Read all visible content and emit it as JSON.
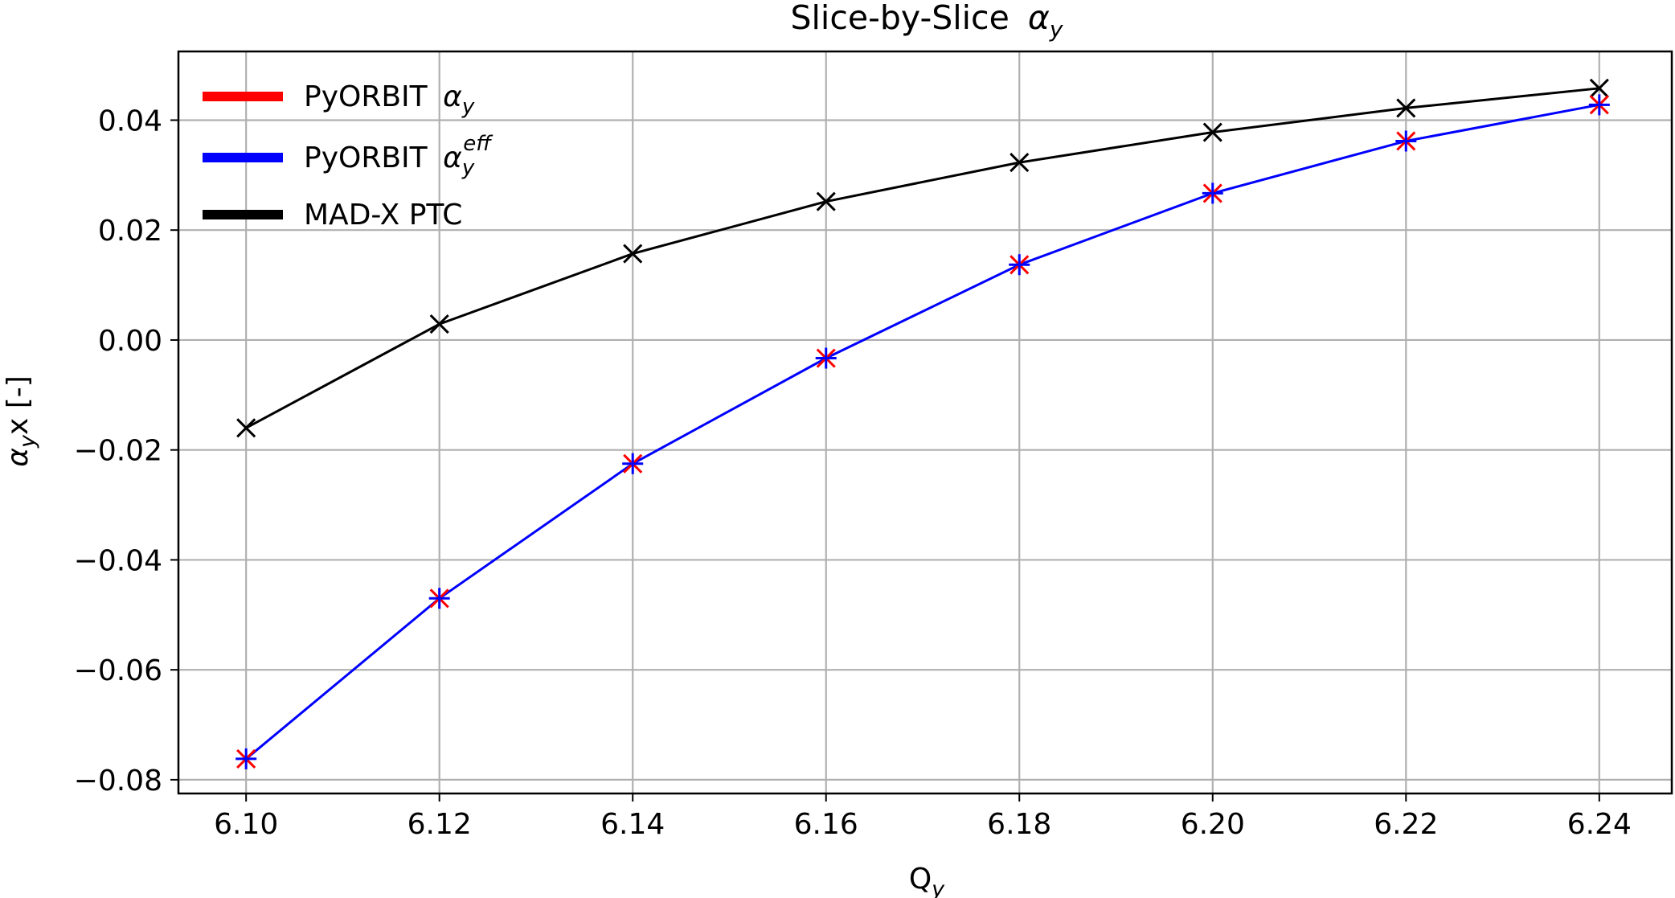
{
  "chart_data": {
    "type": "line",
    "title": "Slice-by-Slice",
    "title_symbol": "α",
    "title_subscript": "y",
    "xlabel": "Q",
    "xlabel_subscript": "y",
    "ylabel": "αyx [-]",
    "ylabel_parts": {
      "symbol": "α",
      "sub": "y",
      "rest": "x [-]"
    },
    "xlim": [
      6.093,
      6.2475
    ],
    "ylim": [
      -0.0825,
      0.0525
    ],
    "x_ticks": [
      6.1,
      6.12,
      6.14,
      6.16,
      6.18,
      6.2,
      6.22,
      6.24
    ],
    "x_tick_labels": [
      "6.10",
      "6.12",
      "6.14",
      "6.16",
      "6.18",
      "6.20",
      "6.22",
      "6.24"
    ],
    "y_ticks": [
      -0.08,
      -0.06,
      -0.04,
      -0.02,
      0.0,
      0.02,
      0.04
    ],
    "y_tick_labels": [
      "−0.08",
      "−0.06",
      "−0.04",
      "−0.02",
      "0.00",
      "0.02",
      "0.04"
    ],
    "grid": true,
    "legend_position": "top-left",
    "x": [
      6.1,
      6.12,
      6.14,
      6.16,
      6.18,
      6.2,
      6.22,
      6.24
    ],
    "series": [
      {
        "name": "PyORBIT",
        "name_symbol": "α",
        "name_sub": "y",
        "name_sup": "",
        "color": "#ff0000",
        "marker": "x",
        "line": false,
        "values": [
          -0.0762,
          -0.047,
          -0.0225,
          -0.0033,
          0.0137,
          0.0267,
          0.0362,
          0.0428
        ]
      },
      {
        "name": "PyORBIT",
        "name_symbol": "α",
        "name_sub": "y",
        "name_sup": "eff",
        "color": "#0000ff",
        "marker": "+",
        "line": true,
        "values": [
          -0.0762,
          -0.047,
          -0.0225,
          -0.0033,
          0.0137,
          0.0267,
          0.0362,
          0.0428
        ]
      },
      {
        "name": "MAD-X PTC",
        "name_symbol": "",
        "name_sub": "",
        "name_sup": "",
        "color": "#000000",
        "marker": "x",
        "line": true,
        "values": [
          -0.016,
          0.0029,
          0.0157,
          0.0252,
          0.0323,
          0.0378,
          0.0422,
          0.0458
        ]
      }
    ]
  }
}
